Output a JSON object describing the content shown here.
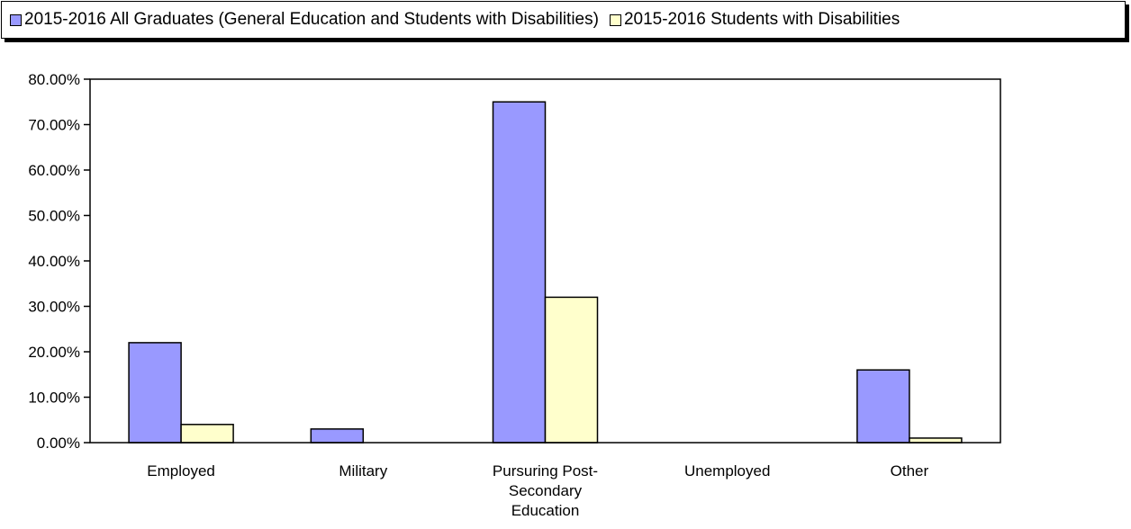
{
  "legend": {
    "series1_label": "2015-2016 All Graduates (General Education and Students with Disabilities)",
    "series2_label": "2015-2016 Students with Disabilities"
  },
  "colors": {
    "series1": "#9999ff",
    "series2": "#ffffcc",
    "axis": "#000000"
  },
  "chart_data": {
    "type": "bar",
    "categories": [
      [
        "Employed"
      ],
      [
        "Military"
      ],
      [
        "Pursuring Post-",
        "Secondary",
        "Education"
      ],
      [
        "Unemployed"
      ],
      [
        "Other"
      ]
    ],
    "series": [
      {
        "name": "2015-2016 All Graduates (General Education and Students with Disabilities)",
        "values": [
          22,
          3,
          75,
          0,
          16
        ]
      },
      {
        "name": "2015-2016 Students with Disabilities",
        "values": [
          4,
          0,
          32,
          0,
          1
        ]
      }
    ],
    "y_ticks": [
      "0.00%",
      "10.00%",
      "20.00%",
      "30.00%",
      "40.00%",
      "50.00%",
      "60.00%",
      "70.00%",
      "80.00%"
    ],
    "ylim": [
      0,
      80
    ],
    "grid": false,
    "legend_position": "top"
  }
}
